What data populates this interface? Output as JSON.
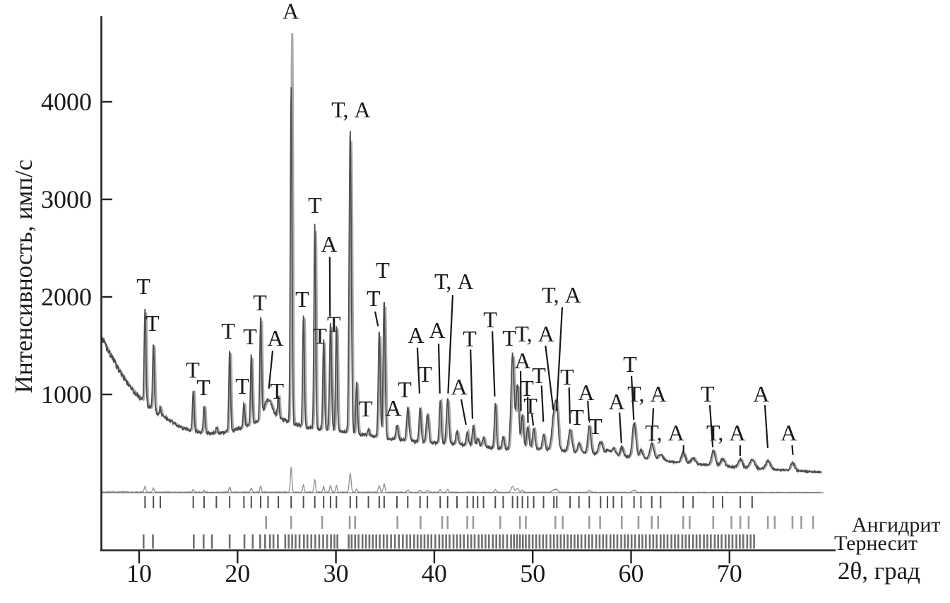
{
  "chart_data": {
    "type": "line",
    "title": "",
    "xlabel": "2θ, град",
    "ylabel": "Интенсивность, имп/с",
    "x_ticks": [
      10,
      20,
      30,
      40,
      50,
      60,
      70
    ],
    "y_ticks": [
      1000,
      2000,
      3000,
      4000
    ],
    "x_range": [
      6.15,
      79.3
    ],
    "y_range": [
      0,
      4880
    ],
    "grid": false,
    "legend_position": "none",
    "traces": [
      {
        "name": "observed-pattern",
        "color": "#4d4d4d"
      },
      {
        "name": "calculated-pattern",
        "color": "#ababab"
      },
      {
        "name": "difference-curve",
        "color": "#8f8f8f"
      }
    ],
    "background_points": [
      [
        6.15,
        1585
      ],
      [
        7,
        1420
      ],
      [
        8,
        1240
      ],
      [
        9,
        1085
      ],
      [
        10,
        975
      ],
      [
        10.5,
        925
      ],
      [
        11,
        875
      ],
      [
        11.5,
        838
      ],
      [
        12,
        800
      ],
      [
        12.5,
        768
      ],
      [
        13,
        738
      ],
      [
        13.5,
        712
      ],
      [
        14,
        672
      ],
      [
        14.5,
        655
      ],
      [
        15,
        638
      ],
      [
        15.5,
        625
      ],
      [
        16,
        615
      ],
      [
        16.5,
        608
      ],
      [
        17,
        602
      ],
      [
        17.5,
        600
      ],
      [
        18,
        603
      ],
      [
        18.5,
        610
      ],
      [
        19,
        618
      ],
      [
        19.5,
        628
      ],
      [
        20,
        645
      ],
      [
        20.5,
        662
      ],
      [
        21,
        680
      ],
      [
        21.5,
        700
      ],
      [
        22,
        722
      ],
      [
        22.5,
        745
      ],
      [
        23,
        762
      ],
      [
        23.5,
        770
      ],
      [
        24,
        765
      ],
      [
        24.5,
        748
      ],
      [
        25,
        726
      ],
      [
        25.5,
        705
      ],
      [
        26,
        688
      ],
      [
        26.5,
        675
      ],
      [
        27,
        665
      ],
      [
        27.5,
        657
      ],
      [
        28,
        650
      ],
      [
        29,
        640
      ],
      [
        30,
        630
      ],
      [
        31,
        615
      ],
      [
        32,
        600
      ],
      [
        33,
        583
      ],
      [
        34,
        566
      ],
      [
        35,
        552
      ],
      [
        36,
        540
      ],
      [
        37,
        530
      ],
      [
        38,
        521
      ],
      [
        39,
        514
      ],
      [
        40,
        507
      ],
      [
        41,
        499
      ],
      [
        42,
        491
      ],
      [
        43,
        483
      ],
      [
        44,
        474
      ],
      [
        45,
        463
      ],
      [
        46,
        450
      ],
      [
        47,
        438
      ],
      [
        47.7,
        432
      ],
      [
        48.5,
        440
      ],
      [
        49.5,
        446
      ],
      [
        50.5,
        442
      ],
      [
        51.5,
        434
      ],
      [
        52.5,
        428
      ],
      [
        53.5,
        417
      ],
      [
        54.5,
        407
      ],
      [
        55.5,
        398
      ],
      [
        56.5,
        390
      ],
      [
        57.5,
        382
      ],
      [
        58.5,
        372
      ],
      [
        59.5,
        362
      ],
      [
        60.5,
        350
      ],
      [
        61.5,
        340
      ],
      [
        62.5,
        330
      ],
      [
        63.5,
        318
      ],
      [
        64.5,
        306
      ],
      [
        65.5,
        296
      ],
      [
        66.5,
        288
      ],
      [
        67.5,
        280
      ],
      [
        68.5,
        272
      ],
      [
        69.5,
        264
      ],
      [
        70.5,
        256
      ],
      [
        71.5,
        248
      ],
      [
        72.5,
        242
      ],
      [
        73.5,
        236
      ],
      [
        74.5,
        230
      ],
      [
        75.5,
        224
      ],
      [
        76.5,
        218
      ],
      [
        77.5,
        213
      ],
      [
        78.5,
        208
      ],
      [
        79.3,
        205
      ]
    ],
    "peaks": [
      [
        10.6,
        1870
      ],
      [
        11.45,
        1520
      ],
      [
        12.15,
        870
      ],
      [
        15.5,
        1050
      ],
      [
        16.6,
        890
      ],
      [
        17.85,
        665
      ],
      [
        19.2,
        1460
      ],
      [
        20.65,
        900
      ],
      [
        21.4,
        1400
      ],
      [
        22.35,
        1765
      ],
      [
        23.1,
        950,
        0.4
      ],
      [
        24.15,
        980
      ],
      [
        25.45,
        4830,
        0.085,
        4160
      ],
      [
        26.7,
        1820
      ],
      [
        27.85,
        2740
      ],
      [
        28.75,
        1565
      ],
      [
        29.45,
        1725,
        0.1
      ],
      [
        30.05,
        1710
      ],
      [
        31.45,
        3700,
        0.11
      ],
      [
        32.1,
        1130
      ],
      [
        33.3,
        640
      ],
      [
        34.4,
        1640,
        0.1
      ],
      [
        34.9,
        1960,
        0.1
      ],
      [
        36.2,
        680,
        0.12
      ],
      [
        37.3,
        855,
        0.12
      ],
      [
        38.55,
        862,
        0.1
      ],
      [
        39.3,
        805,
        0.12
      ],
      [
        40.6,
        950,
        0.1
      ],
      [
        41.35,
        950,
        0.12
      ],
      [
        42.3,
        620,
        0.12
      ],
      [
        43.35,
        625,
        0.1
      ],
      [
        43.95,
        680,
        0.1
      ],
      [
        44.4,
        545,
        0.12
      ],
      [
        45.0,
        560,
        0.12
      ],
      [
        46.2,
        915,
        0.1
      ],
      [
        47.0,
        565,
        0.12
      ],
      [
        47.95,
        1415,
        0.16
      ],
      [
        48.45,
        1095,
        0.14
      ],
      [
        48.95,
        790,
        0.12
      ],
      [
        49.5,
        675,
        0.12
      ],
      [
        50.1,
        660,
        0.12
      ],
      [
        51.1,
        590,
        0.13
      ],
      [
        52.15,
        805,
        0.2
      ],
      [
        52.45,
        790,
        0.15
      ],
      [
        53.8,
        640,
        0.17
      ],
      [
        54.7,
        500,
        0.15
      ],
      [
        55.75,
        680,
        0.15
      ],
      [
        56.9,
        520,
        0.2
      ],
      [
        57.6,
        430,
        0.2
      ],
      [
        58.2,
        450,
        0.2
      ],
      [
        59.05,
        460,
        0.15
      ],
      [
        60.3,
        710,
        0.18
      ],
      [
        61.0,
        430,
        0.15
      ],
      [
        62.1,
        495,
        0.2
      ],
      [
        63.0,
        380,
        0.25
      ],
      [
        65.3,
        400,
        0.2
      ],
      [
        66.3,
        350,
        0.2
      ],
      [
        68.35,
        425,
        0.18
      ],
      [
        69.3,
        340,
        0.2
      ],
      [
        71.1,
        335,
        0.2
      ],
      [
        72.3,
        330,
        0.25
      ],
      [
        73.9,
        320,
        0.22
      ],
      [
        76.4,
        300,
        0.2
      ]
    ],
    "peak_labels": [
      {
        "text": "Т",
        "x": 10.43,
        "y": 2110,
        "leader": null
      },
      {
        "text": "Т",
        "x": 11.36,
        "y": 1732,
        "leader": null
      },
      {
        "text": "Т",
        "x": 15.46,
        "y": 1254,
        "leader": null
      },
      {
        "text": "Т",
        "x": 16.53,
        "y": 1072,
        "leader": null
      },
      {
        "text": "Т",
        "x": 19.05,
        "y": 1652,
        "leader": null
      },
      {
        "text": "Т",
        "x": 20.48,
        "y": 1087,
        "leader": null
      },
      {
        "text": "Т",
        "x": 21.27,
        "y": 1594,
        "leader": null
      },
      {
        "text": "Т",
        "x": 22.28,
        "y": 1942,
        "leader": null
      },
      {
        "text": "А",
        "x": 23.85,
        "y": 1580,
        "leader": [
          23.57,
          1450,
          23.18,
          1060
        ]
      },
      {
        "text": "Т",
        "x": 24.02,
        "y": 1036,
        "leader": null
      },
      {
        "text": "А",
        "x": 25.4,
        "y": 4930,
        "leader": null
      },
      {
        "text": "Т",
        "x": 26.58,
        "y": 1978,
        "leader": null
      },
      {
        "text": "Т",
        "x": 27.87,
        "y": 2942,
        "leader": null
      },
      {
        "text": "Т",
        "x": 28.38,
        "y": 1601,
        "leader": null
      },
      {
        "text": "А",
        "x": 29.31,
        "y": 2543,
        "leader": [
          29.37,
          2410,
          29.4,
          1800
        ]
      },
      {
        "text": "Т",
        "x": 29.8,
        "y": 1720,
        "leader": null
      },
      {
        "text": "Т, А",
        "x": 31.53,
        "y": 3920,
        "leader": null
      },
      {
        "text": "Т",
        "x": 33.04,
        "y": 855,
        "leader": null
      },
      {
        "text": "Т",
        "x": 33.83,
        "y": 1986,
        "leader": [
          33.98,
          1850,
          34.28,
          1700
        ]
      },
      {
        "text": "Т",
        "x": 34.77,
        "y": 2275,
        "leader": null
      },
      {
        "text": "А",
        "x": 35.84,
        "y": 862,
        "leader": null
      },
      {
        "text": "Т",
        "x": 36.99,
        "y": 1051,
        "leader": null
      },
      {
        "text": "А",
        "x": 38.14,
        "y": 1609,
        "leader": [
          38.28,
          1480,
          38.5,
          1010
        ]
      },
      {
        "text": "Т",
        "x": 39.07,
        "y": 1210,
        "leader": null
      },
      {
        "text": "А",
        "x": 40.29,
        "y": 1659,
        "leader": [
          40.44,
          1520,
          40.56,
          1010
        ]
      },
      {
        "text": "Т, А",
        "x": 42.0,
        "y": 2159,
        "leader": [
          41.87,
          2020,
          41.4,
          1010
        ]
      },
      {
        "text": "А",
        "x": 42.52,
        "y": 1080,
        "leader": [
          42.73,
          950,
          43.22,
          690
        ]
      },
      {
        "text": "Т",
        "x": 43.6,
        "y": 1572,
        "leader": [
          43.68,
          1460,
          43.88,
          750
        ]
      },
      {
        "text": "Т",
        "x": 45.68,
        "y": 1768,
        "leader": [
          45.9,
          1650,
          46.14,
          980
        ]
      },
      {
        "text": "Т",
        "x": 47.62,
        "y": 1580,
        "leader": null
      },
      {
        "text": "А",
        "x": 48.98,
        "y": 1348,
        "leader": [
          48.77,
          1240,
          48.8,
          830
        ]
      },
      {
        "text": "Т",
        "x": 49.41,
        "y": 1065,
        "leader": [
          49.49,
          975,
          49.52,
          710
        ]
      },
      {
        "text": "Т",
        "x": 49.77,
        "y": 884,
        "leader": [
          49.92,
          800,
          50.06,
          680
        ]
      },
      {
        "text": "Т, А",
        "x": 50.2,
        "y": 1623,
        "leader": [
          51.3,
          1500,
          52.1,
          840
        ]
      },
      {
        "text": "Т",
        "x": 50.63,
        "y": 1196,
        "leader": [
          50.9,
          1090,
          51.08,
          720
        ]
      },
      {
        "text": "Т, А",
        "x": 52.93,
        "y": 2022,
        "leader": [
          53.0,
          1895,
          52.42,
          830
        ]
      },
      {
        "text": "Т",
        "x": 53.5,
        "y": 1181,
        "leader": [
          53.7,
          1070,
          53.79,
          700
        ]
      },
      {
        "text": "Т",
        "x": 54.51,
        "y": 768,
        "leader": null
      },
      {
        "text": "А",
        "x": 55.44,
        "y": 1022,
        "leader": [
          55.6,
          935,
          55.73,
          730
        ]
      },
      {
        "text": "Т",
        "x": 56.38,
        "y": 674,
        "leader": null
      },
      {
        "text": "А",
        "x": 58.53,
        "y": 928,
        "leader": [
          58.82,
          815,
          59.02,
          500
        ]
      },
      {
        "text": "Т",
        "x": 59.89,
        "y": 1312,
        "leader": [
          60.04,
          1190,
          60.27,
          740
        ]
      },
      {
        "text": "Т, А",
        "x": 61.61,
        "y": 1007,
        "leader": [
          62.26,
          860,
          62.1,
          520
        ]
      },
      {
        "text": "Т, А",
        "x": 63.41,
        "y": 609,
        "leader": [
          65.33,
          480,
          65.33,
          400
        ]
      },
      {
        "text": "Т",
        "x": 67.77,
        "y": 1007,
        "leader": [
          68.0,
          890,
          68.3,
          460
        ]
      },
      {
        "text": "Т, А",
        "x": 69.64,
        "y": 609,
        "leader": [
          71.08,
          480,
          71.08,
          370
        ]
      },
      {
        "text": "А",
        "x": 73.22,
        "y": 1007,
        "leader": [
          73.6,
          890,
          73.89,
          450
        ]
      },
      {
        "text": "А",
        "x": 76.02,
        "y": 609,
        "leader": [
          76.37,
          480,
          76.44,
          380
        ]
      }
    ],
    "phase_rows": [
      {
        "name": "Ангидрит",
        "color": "#9c9c9c",
        "ticks": [
          22.9,
          25.45,
          28.6,
          31.4,
          31.95,
          36.25,
          38.6,
          40.8,
          41.35,
          43.35,
          43.95,
          46.7,
          48.7,
          49.3,
          52.3,
          53.05,
          55.75,
          56.85,
          59.05,
          60.75,
          62.1,
          62.75,
          65.3,
          65.95,
          68.35,
          70.2,
          71.1,
          71.95,
          73.9,
          74.6,
          76.4,
          77.3,
          78.5
        ]
      },
      {
        "name": "Тернесит",
        "color": "#6f6f6f",
        "ticks": [
          10.45,
          11.4,
          15.55,
          16.55,
          17.4,
          19.2,
          20.7,
          21.55,
          22.3,
          22.8,
          23.3,
          23.65,
          24.1,
          24.85,
          25.2,
          25.55,
          25.9,
          26.3,
          26.75,
          27.1,
          27.5,
          27.9,
          28.3,
          28.7,
          29.1,
          29.5,
          29.85,
          30.15,
          31.3,
          31.6,
          31.95,
          32.3,
          32.7,
          33.05,
          33.4,
          33.75,
          34.1,
          34.45,
          34.85,
          35.2,
          35.6,
          36.0,
          36.4,
          36.8,
          37.2,
          37.55,
          37.95,
          38.3,
          38.65,
          39.0,
          39.35,
          39.7,
          40.1,
          40.5,
          40.85,
          41.2,
          41.55,
          41.95,
          42.3,
          42.65,
          43.0,
          43.4,
          43.75,
          44.1,
          44.5,
          44.85,
          45.2,
          45.55,
          45.95,
          46.3,
          46.65,
          47.0,
          47.4,
          47.8,
          48.1,
          48.4,
          48.7,
          49.0,
          49.3,
          49.65,
          50.0,
          50.35,
          50.7,
          51.05,
          51.4,
          51.8,
          52.15,
          52.5,
          52.85,
          53.2,
          53.55,
          53.9,
          54.25,
          54.6,
          54.95,
          55.35,
          55.7,
          56.05,
          56.45,
          56.8,
          57.15,
          57.5,
          57.9,
          58.25,
          58.6,
          59.0,
          59.35,
          59.7,
          60.05,
          60.4,
          60.8,
          61.15,
          61.5,
          61.9,
          62.25,
          62.6,
          63.0,
          63.35,
          63.7,
          64.1,
          64.45,
          64.8,
          65.2,
          65.55,
          65.9,
          66.3,
          66.65,
          67.0,
          67.4,
          67.75,
          68.1,
          68.5,
          68.85,
          69.2,
          69.6,
          69.95,
          70.3,
          70.7,
          71.05,
          71.4,
          71.8,
          72.15,
          72.5
        ]
      }
    ],
    "colors": {
      "axis": "#222222",
      "text": "#1a1a1a",
      "observed": "#4d4d4d",
      "calculated": "#ababab",
      "difference": "#8f8f8f",
      "peak_row": "#4f4f4f"
    }
  }
}
